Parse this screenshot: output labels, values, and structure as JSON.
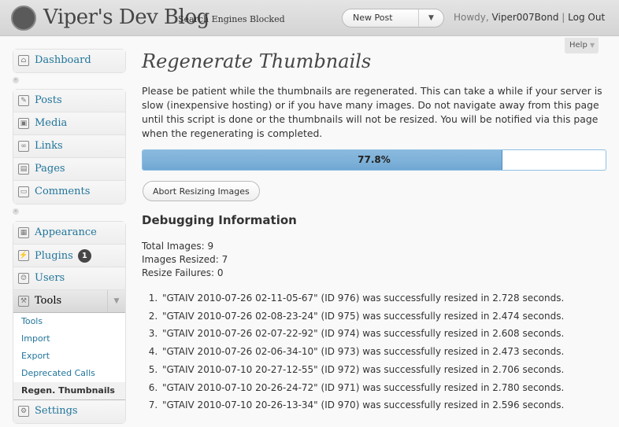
{
  "header": {
    "logo": "W",
    "site_title": "Viper's Dev Blog",
    "privacy": "Search Engines Blocked",
    "favorite": "New Post",
    "howdy": "Howdy,",
    "user": "Viper007Bond",
    "sep": "|",
    "logout": "Log Out",
    "help": "Help"
  },
  "menu": {
    "dashboard": "Dashboard",
    "group1": [
      "Posts",
      "Media",
      "Links",
      "Pages",
      "Comments"
    ],
    "group2": [
      "Appearance",
      "Plugins",
      "Users"
    ],
    "plugins_badge": "1",
    "tools": "Tools",
    "tools_sub": [
      "Tools",
      "Import",
      "Export",
      "Deprecated Calls",
      "Regen. Thumbnails"
    ],
    "settings": "Settings"
  },
  "main": {
    "title": "Regenerate Thumbnails",
    "intro": "Please be patient while the thumbnails are regenerated. This can take a while if your server is slow (inexpensive hosting) or if you have many images. Do not navigate away from this page until this script is done or the thumbnails will not be resized. You will be notified via this page when the regenerating is completed.",
    "progress": 77.8,
    "progress_label": "77.8%",
    "abort": "Abort Resizing Images",
    "debug_title": "Debugging Information",
    "stats": [
      "Total Images: 9",
      "Images Resized: 7",
      "Resize Failures: 0"
    ],
    "log": [
      "\"GTAIV 2010-07-26 02-11-05-67\" (ID 976) was successfully resized in 2.728 seconds.",
      "\"GTAIV 2010-07-26 02-08-23-24\" (ID 975) was successfully resized in 2.474 seconds.",
      "\"GTAIV 2010-07-26 02-07-22-92\" (ID 974) was successfully resized in 2.608 seconds.",
      "\"GTAIV 2010-07-26 02-06-34-10\" (ID 973) was successfully resized in 2.473 seconds.",
      "\"GTAIV 2010-07-10 20-27-12-55\" (ID 972) was successfully resized in 2.706 seconds.",
      "\"GTAIV 2010-07-10 20-26-24-72\" (ID 971) was successfully resized in 2.780 seconds.",
      "\"GTAIV 2010-07-10 20-26-13-34\" (ID 970) was successfully resized in 2.596 seconds."
    ]
  }
}
